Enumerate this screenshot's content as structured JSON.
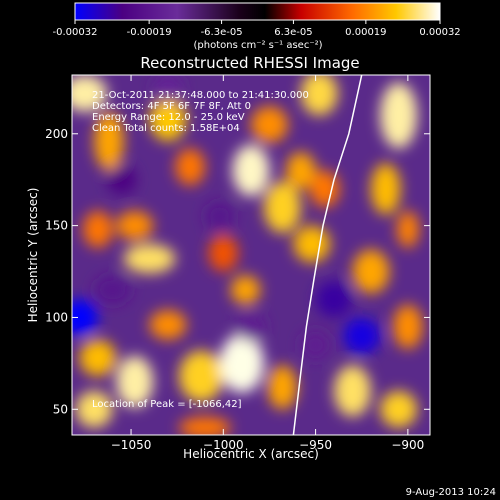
{
  "chart_data": {
    "type": "heatmap",
    "title": "Reconstructed RHESSI Image",
    "colorbar": {
      "min": -0.00032,
      "max": 0.00032,
      "ticks": [
        {
          "v": -0.00032,
          "label": "-0.00032"
        },
        {
          "v": -0.00019,
          "label": "-0.00019"
        },
        {
          "v": -6.3e-05,
          "label": "-6.3e-05"
        },
        {
          "v": 6.3e-05,
          "label": "6.3e-05"
        },
        {
          "v": 0.00019,
          "label": "0.00019"
        },
        {
          "v": 0.00032,
          "label": "0.00032"
        }
      ],
      "units_label": "(photons cm⁻² s⁻¹ asec⁻²)",
      "colors": [
        "#0000ff",
        "#4b0082",
        "#6a2c9a",
        "#1a001a",
        "#c80000",
        "#ff6a00",
        "#ffc800",
        "#ffffc8",
        "#ffffff"
      ]
    },
    "xlabel": "Heliocentric X (arcsec)",
    "ylabel": "Heliocentric Y (arcsec)",
    "xlim": [
      -1082,
      -888
    ],
    "ylim": [
      36,
      232
    ],
    "xticks": [
      {
        "v": -1050,
        "label": "−1050"
      },
      {
        "v": -1000,
        "label": "−1000"
      },
      {
        "v": -950,
        "label": "−950"
      },
      {
        "v": -900,
        "label": "−900"
      }
    ],
    "yticks": [
      {
        "v": 50,
        "label": "50"
      },
      {
        "v": 100,
        "label": "100"
      },
      {
        "v": 150,
        "label": "150"
      },
      {
        "v": 200,
        "label": "200"
      }
    ],
    "annotations": [
      "21-Oct-2011 21:37:48.000 to 21:41:30.000",
      "Detectors: 4F 5F 6F 7F 8F, Att 0",
      "Energy Range: 12.0 - 25.0 keV",
      "Clean     Total counts: 1.58E+04"
    ],
    "peak_label": "Location of Peak = [-1066,42]",
    "peak": {
      "x": -1066,
      "y": 42
    },
    "limb": [
      {
        "x": -925,
        "y": 232
      },
      {
        "x": -932,
        "y": 200
      },
      {
        "x": -940,
        "y": 175
      },
      {
        "x": -946,
        "y": 150
      },
      {
        "x": -951,
        "y": 120
      },
      {
        "x": -955,
        "y": 95
      },
      {
        "x": -958,
        "y": 70
      },
      {
        "x": -962,
        "y": 36
      }
    ],
    "blobs": [
      {
        "x": -1075,
        "y": 222,
        "v": 0.0003,
        "rx": 12,
        "ry": 10
      },
      {
        "x": -1062,
        "y": 196,
        "v": 0.00022,
        "rx": 8,
        "ry": 16
      },
      {
        "x": -1030,
        "y": 208,
        "v": 0.00025,
        "rx": 10,
        "ry": 12
      },
      {
        "x": -1018,
        "y": 182,
        "v": 0.00018,
        "rx": 8,
        "ry": 10
      },
      {
        "x": -985,
        "y": 180,
        "v": 0.00031,
        "rx": 10,
        "ry": 14
      },
      {
        "x": -975,
        "y": 205,
        "v": 0.0002,
        "rx": 10,
        "ry": 10
      },
      {
        "x": -948,
        "y": 222,
        "v": 0.00027,
        "rx": 10,
        "ry": 12
      },
      {
        "x": -958,
        "y": 180,
        "v": 0.00022,
        "rx": 8,
        "ry": 10
      },
      {
        "x": -1048,
        "y": 150,
        "v": 0.0002,
        "rx": 10,
        "ry": 8
      },
      {
        "x": -1068,
        "y": 148,
        "v": 0.00018,
        "rx": 8,
        "ry": 10
      },
      {
        "x": -1040,
        "y": 132,
        "v": 0.00028,
        "rx": 14,
        "ry": 8
      },
      {
        "x": -1000,
        "y": 135,
        "v": 0.00015,
        "rx": 8,
        "ry": 10
      },
      {
        "x": -988,
        "y": 115,
        "v": 0.00022,
        "rx": 8,
        "ry": 8
      },
      {
        "x": -968,
        "y": 160,
        "v": 0.00026,
        "rx": 10,
        "ry": 14
      },
      {
        "x": -952,
        "y": 140,
        "v": 0.00024,
        "rx": 10,
        "ry": 10
      },
      {
        "x": -945,
        "y": 170,
        "v": 0.00018,
        "rx": 8,
        "ry": 10
      },
      {
        "x": -905,
        "y": 210,
        "v": 0.0003,
        "rx": 10,
        "ry": 18
      },
      {
        "x": -912,
        "y": 170,
        "v": 0.00024,
        "rx": 8,
        "ry": 14
      },
      {
        "x": -920,
        "y": 125,
        "v": 0.00022,
        "rx": 10,
        "ry": 12
      },
      {
        "x": -900,
        "y": 148,
        "v": 0.00019,
        "rx": 6,
        "ry": 10
      },
      {
        "x": -900,
        "y": 95,
        "v": 0.0002,
        "rx": 8,
        "ry": 12
      },
      {
        "x": -930,
        "y": 60,
        "v": 0.00028,
        "rx": 10,
        "ry": 14
      },
      {
        "x": -905,
        "y": 50,
        "v": 0.00026,
        "rx": 10,
        "ry": 10
      },
      {
        "x": -1068,
        "y": 78,
        "v": 0.00024,
        "rx": 10,
        "ry": 10
      },
      {
        "x": -1048,
        "y": 65,
        "v": 0.0003,
        "rx": 10,
        "ry": 14
      },
      {
        "x": -1070,
        "y": 50,
        "v": 0.00028,
        "rx": 10,
        "ry": 10
      },
      {
        "x": -1030,
        "y": 96,
        "v": 0.0002,
        "rx": 10,
        "ry": 8
      },
      {
        "x": -1012,
        "y": 68,
        "v": 0.00026,
        "rx": 12,
        "ry": 14
      },
      {
        "x": -990,
        "y": 75,
        "v": 0.00032,
        "rx": 12,
        "ry": 16
      },
      {
        "x": -968,
        "y": 62,
        "v": 0.00022,
        "rx": 8,
        "ry": 12
      },
      {
        "x": -1010,
        "y": 40,
        "v": 0.00018,
        "rx": 14,
        "ry": 6
      },
      {
        "x": -1078,
        "y": 100,
        "v": -0.00032,
        "rx": 10,
        "ry": 10
      },
      {
        "x": -1055,
        "y": 175,
        "v": -0.00024,
        "rx": 8,
        "ry": 8
      },
      {
        "x": -1002,
        "y": 155,
        "v": -0.0002,
        "rx": 8,
        "ry": 8
      },
      {
        "x": -985,
        "y": 95,
        "v": -0.00018,
        "rx": 8,
        "ry": 8
      },
      {
        "x": -940,
        "y": 110,
        "v": -0.00026,
        "rx": 10,
        "ry": 10
      },
      {
        "x": -925,
        "y": 90,
        "v": -0.0003,
        "rx": 10,
        "ry": 10
      },
      {
        "x": -1060,
        "y": 115,
        "v": -0.0002,
        "rx": 10,
        "ry": 8
      },
      {
        "x": -1030,
        "y": 225,
        "v": -0.00016,
        "rx": 8,
        "ry": 8
      },
      {
        "x": -950,
        "y": 85,
        "v": -0.00018,
        "rx": 8,
        "ry": 8
      }
    ]
  },
  "footer": {
    "date": "9-Aug-2013 10:24"
  }
}
